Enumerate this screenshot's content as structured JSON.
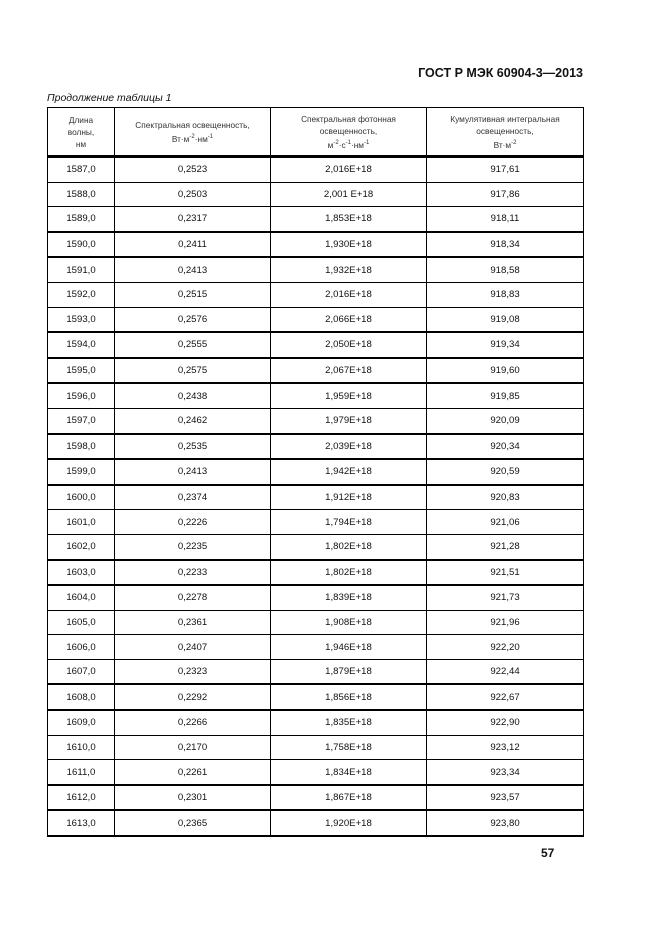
{
  "header": {
    "doc_id": "ГОСТ Р МЭК 60904-3—2013"
  },
  "caption": "Продолжение таблицы 1",
  "columns": [
    {
      "lines": [
        "Длина",
        "волны,",
        "нм"
      ]
    },
    {
      "lines": [
        "Спектральная освещенность,"
      ],
      "unit": [
        {
          "t": "Вт·м"
        },
        {
          "s": "-2"
        },
        {
          "t": "·нм"
        },
        {
          "s": "-1"
        }
      ]
    },
    {
      "lines": [
        "Спектральная фотонная",
        "освещенность,"
      ],
      "unit": [
        {
          "t": "м"
        },
        {
          "s": "-2"
        },
        {
          "t": "·с"
        },
        {
          "s": "-1"
        },
        {
          "t": "·нм"
        },
        {
          "s": "-1"
        }
      ]
    },
    {
      "lines": [
        "Кумулятивная интегральная",
        "освещенность,"
      ],
      "unit": [
        {
          "t": "Вт·м"
        },
        {
          "s": "-2"
        }
      ]
    }
  ],
  "rows": [
    [
      "1587,0",
      "0,2523",
      "2,016E+18",
      "917,61"
    ],
    [
      "1588,0",
      "0,2503",
      "2,001 E+18",
      "917,86"
    ],
    [
      "1589,0",
      "0,2317",
      "1,853E+18",
      "918,11"
    ],
    [
      "1590,0",
      "0,2411",
      "1,930E+18",
      "918,34"
    ],
    [
      "1591,0",
      "0,2413",
      "1,932E+18",
      "918,58"
    ],
    [
      "1592,0",
      "0,2515",
      "2,016E+18",
      "918,83"
    ],
    [
      "1593,0",
      "0,2576",
      "2,066E+18",
      "919,08"
    ],
    [
      "1594,0",
      "0,2555",
      "2,050E+18",
      "919,34"
    ],
    [
      "1595,0",
      "0,2575",
      "2,067E+18",
      "919,60"
    ],
    [
      "1596,0",
      "0,2438",
      "1,959E+18",
      "919,85"
    ],
    [
      "1597,0",
      "0,2462",
      "1,979E+18",
      "920,09"
    ],
    [
      "1598,0",
      "0,2535",
      "2,039E+18",
      "920,34"
    ],
    [
      "1599,0",
      "0,2413",
      "1,942E+18",
      "920,59"
    ],
    [
      "1600,0",
      "0,2374",
      "1,912E+18",
      "920,83"
    ],
    [
      "1601,0",
      "0,2226",
      "1,794E+18",
      "921,06"
    ],
    [
      "1602,0",
      "0,2235",
      "1,802E+18",
      "921,28"
    ],
    [
      "1603,0",
      "0,2233",
      "1,802E+18",
      "921,51"
    ],
    [
      "1604,0",
      "0,2278",
      "1,839E+18",
      "921,73"
    ],
    [
      "1605,0",
      "0,2361",
      "1,908E+18",
      "921,96"
    ],
    [
      "1606,0",
      "0,2407",
      "1,946E+18",
      "922,20"
    ],
    [
      "1607,0",
      "0,2323",
      "1,879E+18",
      "922,44"
    ],
    [
      "1608,0",
      "0,2292",
      "1,856E+18",
      "922,67"
    ],
    [
      "1609,0",
      "0,2266",
      "1,835E+18",
      "922,90"
    ],
    [
      "1610,0",
      "0,2170",
      "1,758E+18",
      "923,12"
    ],
    [
      "1611,0",
      "0,2261",
      "1,834E+18",
      "923,34"
    ],
    [
      "1612,0",
      "0,2301",
      "1,867E+18",
      "923,57"
    ],
    [
      "1613,0",
      "0,2365",
      "1,920E+18",
      "923,80"
    ]
  ],
  "page_number": "57"
}
